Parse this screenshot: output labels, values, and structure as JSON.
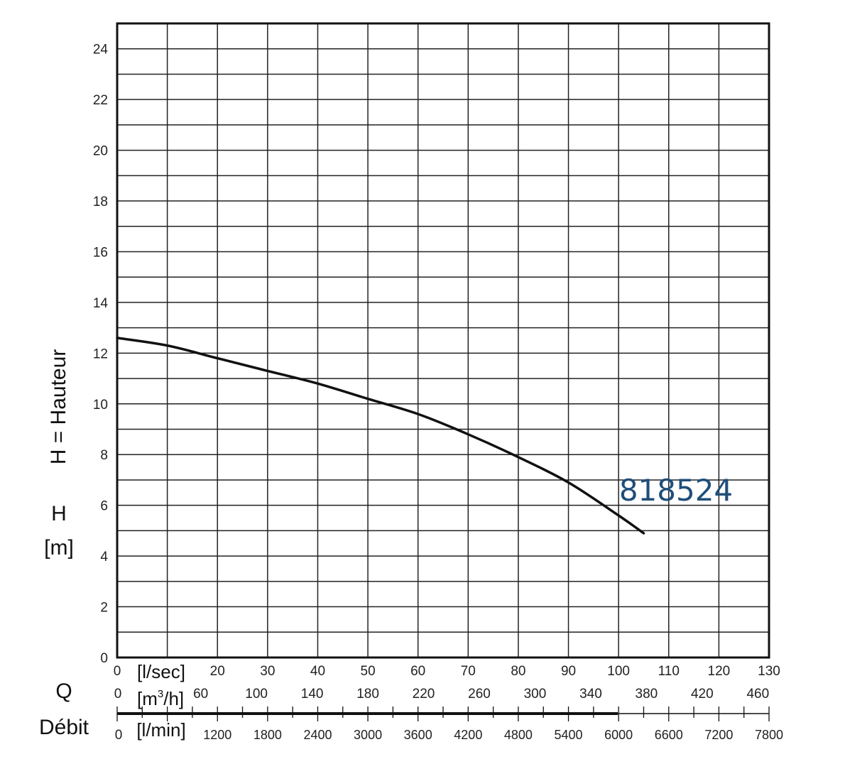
{
  "chart_data": {
    "type": "line",
    "series": [
      {
        "name": "818524",
        "x": [
          0,
          10,
          20,
          30,
          40,
          50,
          60,
          70,
          80,
          90,
          100,
          105
        ],
        "y": [
          12.6,
          12.3,
          11.8,
          11.3,
          10.8,
          10.2,
          9.6,
          8.8,
          7.9,
          6.9,
          5.6,
          4.9
        ],
        "color": "#111111"
      }
    ],
    "y_axis": {
      "label_name": "H = Hauteur",
      "label_symbol": "H",
      "label_unit": "[m]",
      "ylim": [
        0,
        25
      ],
      "ticks": [
        "0",
        "2",
        "4",
        "6",
        "8",
        "10",
        "12",
        "14",
        "16",
        "18",
        "20",
        "22",
        "24"
      ]
    },
    "x_axis": {
      "xlim": [
        0,
        130
      ],
      "label_symbol": "Q",
      "label_name": "Débit",
      "lsec": {
        "unit": "[l/sec]",
        "zero": "0",
        "ticks": [
          "20",
          "30",
          "40",
          "50",
          "60",
          "70",
          "80",
          "90",
          "100",
          "110",
          "120",
          "130"
        ]
      },
      "m3h": {
        "unit_main": "[m",
        "unit_sup": "3",
        "unit_end": "/h]",
        "zero": "0",
        "ticks": [
          "60",
          "100",
          "140",
          "180",
          "220",
          "260",
          "300",
          "340",
          "380",
          "420",
          "460"
        ]
      },
      "lmin": {
        "unit": "[l/min]",
        "zero": "0",
        "ticks": [
          "1200",
          "1800",
          "2400",
          "3000",
          "3600",
          "4200",
          "4800",
          "5400",
          "6000",
          "6600",
          "7200",
          "7800"
        ]
      }
    },
    "grid": true,
    "legend": "none"
  }
}
